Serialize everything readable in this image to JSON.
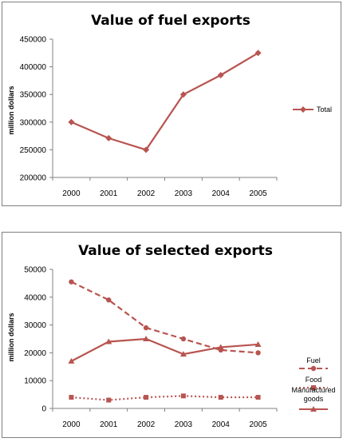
{
  "chart_data": [
    {
      "type": "line",
      "title": "Value of fuel exports",
      "xlabel": "",
      "ylabel": "million dollars",
      "x": [
        "2000",
        "2001",
        "2002",
        "2003",
        "2004",
        "2005"
      ],
      "ylim": [
        200000,
        450000
      ],
      "yticks": [
        "200000",
        "250000",
        "300000",
        "350000",
        "400000",
        "450000"
      ],
      "legend_position": "right",
      "grid": false,
      "series": [
        {
          "name": "Total",
          "values": [
            300000,
            271000,
            250000,
            350000,
            385000,
            425000
          ],
          "color": "#b85450",
          "marker": "diamond",
          "dash": "solid"
        }
      ]
    },
    {
      "type": "line",
      "title": "Value of selected exports",
      "xlabel": "",
      "ylabel": "million dollars",
      "x": [
        "2000",
        "2001",
        "2002",
        "2003",
        "2004",
        "2005"
      ],
      "ylim": [
        0,
        50000
      ],
      "yticks": [
        "0",
        "10000",
        "20000",
        "30000",
        "40000",
        "50000"
      ],
      "legend_position": "right",
      "grid": false,
      "series": [
        {
          "name": "Fuel",
          "values": [
            45500,
            39000,
            29000,
            25000,
            21000,
            20000
          ],
          "color": "#b85450",
          "marker": "circle",
          "dash": "dashed"
        },
        {
          "name": "Food",
          "values": [
            4000,
            3000,
            4000,
            4500,
            4000,
            4000
          ],
          "color": "#b85450",
          "marker": "square",
          "dash": "dotted"
        },
        {
          "name": "Manufactured goods",
          "values": [
            17000,
            24000,
            25000,
            19500,
            22000,
            23000
          ],
          "color": "#b85450",
          "marker": "triangle",
          "dash": "solid"
        }
      ]
    }
  ]
}
